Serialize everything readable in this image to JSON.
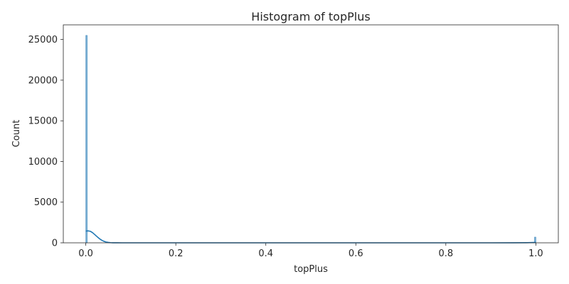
{
  "chart_data": {
    "type": "bar",
    "title": "Histogram of topPlus",
    "xlabel": "topPlus",
    "ylabel": "Count",
    "xlim": [
      -0.05,
      1.05
    ],
    "ylim": [
      0,
      26800
    ],
    "x_ticks": [
      0.0,
      0.2,
      0.4,
      0.6,
      0.8,
      1.0
    ],
    "x_tick_labels": [
      "0.0",
      "0.2",
      "0.4",
      "0.6",
      "0.8",
      "1.0"
    ],
    "y_ticks": [
      0,
      5000,
      10000,
      15000,
      20000,
      25000
    ],
    "y_tick_labels": [
      "0",
      "5000",
      "10000",
      "15000",
      "20000",
      "25000"
    ],
    "grid": false,
    "series": [
      {
        "kind": "histogram",
        "color": "#1f77b4",
        "bins": [
          {
            "x0": 0.0,
            "x1": 0.003,
            "count": 25500
          },
          {
            "x0": 0.997,
            "x1": 1.0,
            "count": 700
          }
        ]
      },
      {
        "kind": "kde",
        "color": "#1f77b4",
        "x": [
          0.0,
          0.005,
          0.01,
          0.015,
          0.02,
          0.025,
          0.03,
          0.035,
          0.04,
          0.045,
          0.05,
          0.055,
          0.06,
          0.07,
          0.08,
          0.1,
          0.3,
          0.5,
          0.7,
          0.9,
          0.95,
          0.98,
          1.0
        ],
        "y": [
          1450,
          1470,
          1420,
          1250,
          1010,
          760,
          520,
          330,
          190,
          100,
          50,
          22,
          8,
          2,
          0,
          0,
          0,
          0,
          0,
          0,
          5,
          20,
          45
        ]
      }
    ]
  }
}
